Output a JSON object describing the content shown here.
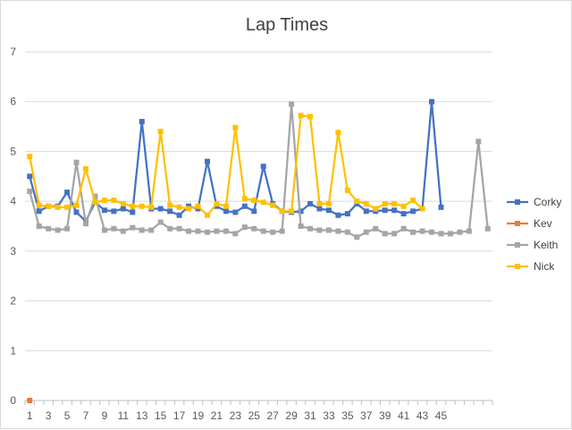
{
  "chart_data": {
    "type": "line",
    "title": "Lap Times",
    "xlabel": "",
    "ylabel": "",
    "ylim": [
      0,
      7
    ],
    "yticks": [
      0,
      1,
      2,
      3,
      4,
      5,
      6,
      7
    ],
    "x_categories": 50,
    "x_tick_labels": [
      1,
      3,
      5,
      7,
      9,
      11,
      13,
      15,
      17,
      19,
      21,
      23,
      25,
      27,
      29,
      31,
      33,
      35,
      37,
      39,
      41,
      43,
      45
    ],
    "grid": "horizontal",
    "legend_position": "right",
    "series": [
      {
        "name": "Corky",
        "color": "#4472c4",
        "values": [
          4.5,
          3.8,
          3.9,
          3.9,
          4.18,
          3.78,
          3.6,
          3.98,
          3.82,
          3.8,
          3.85,
          3.78,
          5.6,
          3.85,
          3.85,
          3.8,
          3.72,
          3.9,
          3.85,
          4.8,
          3.9,
          3.8,
          3.78,
          3.9,
          3.8,
          4.7,
          3.95,
          3.8,
          3.78,
          3.8,
          3.95,
          3.85,
          3.82,
          3.72,
          3.75,
          3.95,
          3.8,
          3.8,
          3.82,
          3.82,
          3.75,
          3.8,
          3.85,
          6.0,
          3.88
        ]
      },
      {
        "name": "Kev",
        "color": "#ed7d31",
        "values": [
          0
        ]
      },
      {
        "name": "Keith",
        "color": "#a5a5a5",
        "values": [
          4.2,
          3.5,
          3.45,
          3.42,
          3.45,
          4.78,
          3.55,
          4.1,
          3.42,
          3.45,
          3.4,
          3.47,
          3.42,
          3.42,
          3.58,
          3.45,
          3.45,
          3.4,
          3.4,
          3.38,
          3.4,
          3.4,
          3.35,
          3.48,
          3.45,
          3.4,
          3.38,
          3.4,
          5.95,
          3.5,
          3.45,
          3.42,
          3.42,
          3.4,
          3.38,
          3.28,
          3.38,
          3.45,
          3.35,
          3.35,
          3.45,
          3.38,
          3.4,
          3.38,
          3.35,
          3.35,
          3.38,
          3.4,
          5.2,
          3.45
        ]
      },
      {
        "name": "Nick",
        "color": "#ffc000",
        "values": [
          4.9,
          3.92,
          3.9,
          3.88,
          3.88,
          3.92,
          4.65,
          3.98,
          4.02,
          4.02,
          3.95,
          3.9,
          3.9,
          3.88,
          5.4,
          3.92,
          3.88,
          3.85,
          3.9,
          3.72,
          3.95,
          3.9,
          5.48,
          4.05,
          4.02,
          3.98,
          3.92,
          3.8,
          3.8,
          5.72,
          5.7,
          3.95,
          3.95,
          5.38,
          4.22,
          4.0,
          3.95,
          3.85,
          3.95,
          3.95,
          3.9,
          4.02,
          3.85
        ]
      }
    ]
  }
}
